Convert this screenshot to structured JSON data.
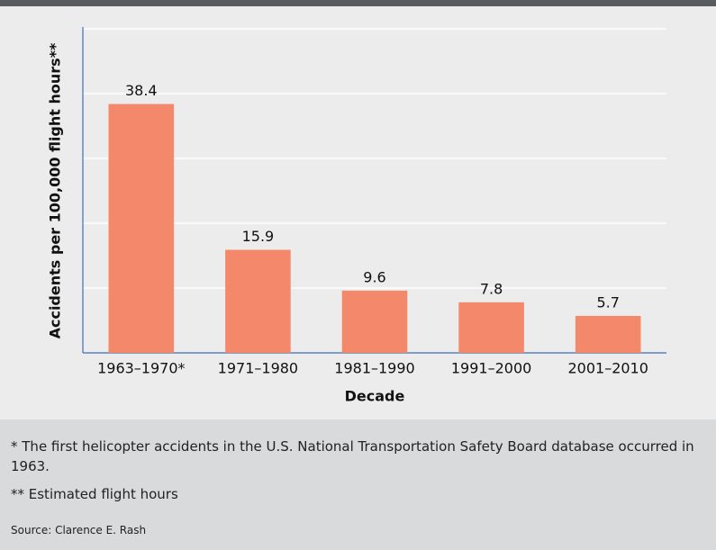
{
  "chart_data": {
    "type": "bar",
    "y_label": "Accidents per 100,000 flight hours**",
    "x_label": "Decade",
    "categories": [
      "1963–1970*",
      "1971–1980",
      "1981–1990",
      "1991–2000",
      "2001–2010"
    ],
    "values": [
      38.4,
      15.9,
      9.6,
      7.8,
      5.7
    ],
    "color": "#f4886b",
    "ylim": [
      0,
      50
    ],
    "yticks": [
      10,
      20,
      30,
      40,
      50
    ],
    "grid": true
  },
  "notes": [
    "* The first helicopter accidents in the U.S. National Transportation Safety Board database occurred in 1963.",
    "** Estimated flight hours"
  ],
  "source": "Source: Clarence E. Rash"
}
